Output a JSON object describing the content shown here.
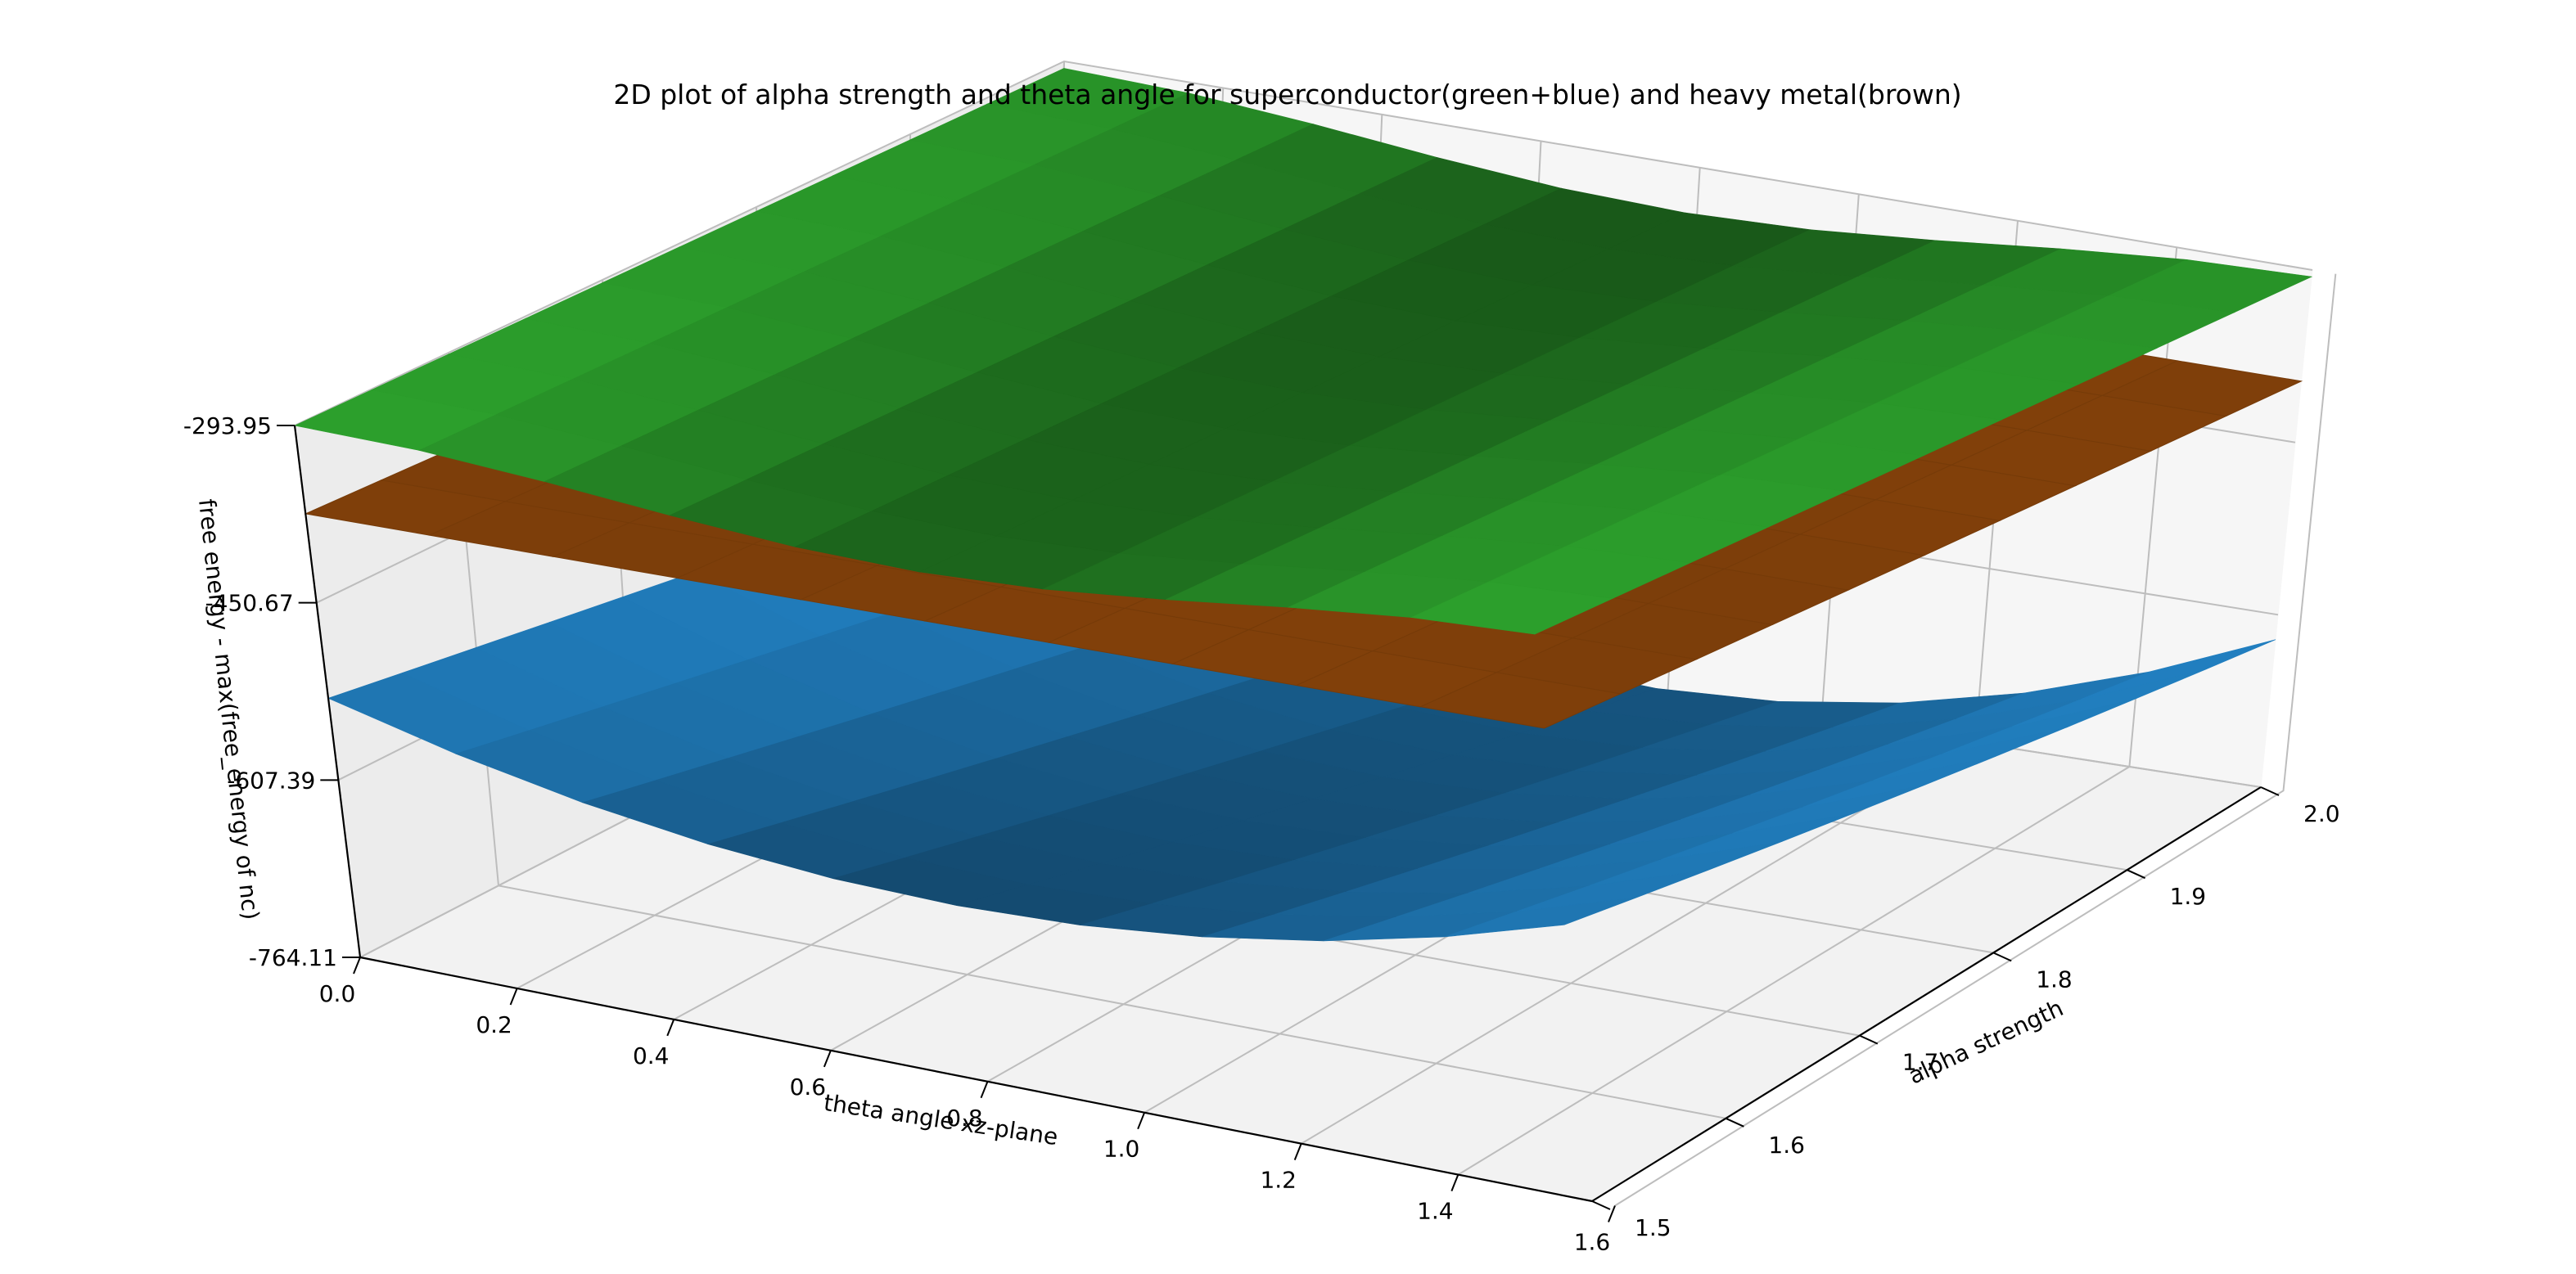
{
  "chart_data": {
    "type": "surface3d",
    "title": "2D plot of alpha strength and theta angle for superconductor(green+blue) and heavy metal(brown)",
    "xlabel": "theta angle xz-plane",
    "ylabel": "alpha strength",
    "zlabel": "free energy - max(free_energy of nc)",
    "x_ticks": [
      "0.0",
      "0.2",
      "0.4",
      "0.6",
      "0.8",
      "1.0",
      "1.2",
      "1.4",
      "1.6"
    ],
    "y_ticks": [
      "1.5",
      "1.6",
      "1.7",
      "1.8",
      "1.9",
      "2.0"
    ],
    "z_ticks": [
      "-293.95",
      "-450.67",
      "-607.39",
      "-764.11"
    ],
    "xlim": [
      0,
      1.5708
    ],
    "ylim": [
      1.5,
      2.0
    ],
    "zlim": [
      -764.11,
      -293.95
    ],
    "grid": true,
    "surface_x": [
      0,
      0.1571,
      0.3142,
      0.4712,
      0.6283,
      0.7854,
      0.9425,
      1.0996,
      1.2566,
      1.4137,
      1.5708
    ],
    "surface_y": [
      1.5,
      1.55,
      1.6,
      1.65,
      1.7,
      1.75,
      1.8,
      1.85,
      1.9,
      1.95,
      2.0
    ],
    "series": [
      {
        "name": "superconductor",
        "part": "top (green)",
        "color": "#2ca02c",
        "z_approx": "about -294 at theta 0 and 1.5708, dipping to about -330 near theta 0.79; nearly flat in alpha"
      },
      {
        "name": "heavy metal",
        "color": "#7f3f0a",
        "z_approx": "about -372 at alpha 1.5 falling to about -395 at alpha 2.0; nearly flat in theta"
      },
      {
        "name": "superconductor",
        "part": "bottom (blue)",
        "color": "#1f77b4",
        "z_approx": "about -530 at alpha 1.5 falling to about -764 at alpha 2.0 near theta 0.79; higher toward theta 0 and 1.5708"
      }
    ]
  }
}
